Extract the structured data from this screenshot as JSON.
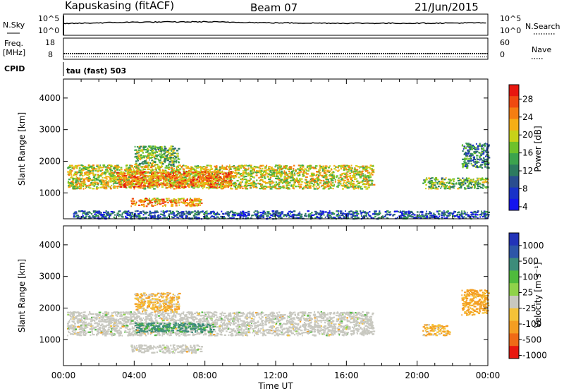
{
  "header": {
    "station": "Kapuskasing (fitACF)",
    "beam": "Beam 07",
    "date": "21/Jun/2015"
  },
  "params": {
    "nsky_label": "N.Sky",
    "nsky_ticks": [
      "10^5",
      "10^0"
    ],
    "nsearch_label": "N.Search",
    "nsearch_ticks": [
      "10^5",
      "10^0"
    ],
    "freq_label": "Freq.",
    "freq_unit": "[MHz]",
    "freq_ticks": [
      "18",
      "8"
    ],
    "nave_label": "Nave",
    "nave_ticks": [
      "60",
      "0"
    ],
    "cpid_label": "CPID",
    "cpid_value": "tau (fast) 503"
  },
  "axes": {
    "ylabel": "Slant Range [km]",
    "xlabel": "Time UT",
    "x_ticks": [
      "00:00",
      "04:00",
      "08:00",
      "12:00",
      "16:00",
      "20:00",
      "00:00"
    ],
    "y_ticks": [
      "4000",
      "3000",
      "2000",
      "1000"
    ],
    "ylim": [
      180,
      4600
    ],
    "xlim_hours": [
      0,
      24
    ]
  },
  "colorbars": {
    "power": {
      "label": "Power [dB]",
      "ticks": [
        "28",
        "24",
        "20",
        "16",
        "12",
        "8",
        "4"
      ],
      "colors": [
        "#e8170f",
        "#f04a10",
        "#f57e12",
        "#f6ae16",
        "#c7d219",
        "#6dc12b",
        "#3ca34d",
        "#2d7a5f",
        "#2a4d8f",
        "#1932c8",
        "#1414ee"
      ]
    },
    "velocity": {
      "label": "Velocity [m s⁻¹]",
      "ticks": [
        "1000",
        "500",
        "100",
        "25",
        "-25",
        "-100",
        "-500",
        "-1000"
      ],
      "colors": [
        "#2233b8",
        "#2d56a8",
        "#3d8c7a",
        "#4fba3c",
        "#8fd24a",
        "#c8c8c0",
        "#f4c238",
        "#f49e22",
        "#ef6a16",
        "#e8170f"
      ]
    }
  },
  "chart_data": [
    {
      "type": "line",
      "title": "N.Sky / N.Search",
      "x": [
        0,
        4,
        8,
        12,
        16,
        20,
        24
      ],
      "series": [
        {
          "name": "N.Sky",
          "values": [
            2.8,
            3.2,
            3.3,
            3.0,
            2.9,
            2.9,
            3.0
          ]
        },
        {
          "name": "N.Search",
          "values": [
            0.4,
            0.4,
            0.4,
            0.4,
            0.4,
            0.4,
            0.4
          ]
        }
      ]
    },
    {
      "type": "line",
      "title": "Freq. [MHz] / Nave",
      "x": [
        0,
        4,
        8,
        12,
        16,
        20,
        24
      ],
      "series": [
        {
          "name": "Freq.",
          "values": [
            10.2,
            10.2,
            10.2,
            10.2,
            10.2,
            10.2,
            10.2
          ]
        },
        {
          "name": "Nave",
          "values": [
            3,
            3,
            3,
            3,
            3,
            3,
            3
          ]
        }
      ]
    },
    {
      "type": "heatmap",
      "title": "Power [dB]",
      "xlabel": "Time UT",
      "ylabel": "Slant Range [km]",
      "ylim": [
        180,
        4600
      ],
      "regions": [
        {
          "t": [
            0.2,
            17.5
          ],
          "r": [
            1150,
            1900
          ],
          "value": 18
        },
        {
          "t": [
            3.0,
            9.5
          ],
          "r": [
            1200,
            1700
          ],
          "value": 24
        },
        {
          "t": [
            4.0,
            6.5
          ],
          "r": [
            1900,
            2500
          ],
          "value": 14
        },
        {
          "t": [
            3.8,
            7.8
          ],
          "r": [
            600,
            850
          ],
          "value": 22
        },
        {
          "t": [
            0.5,
            24.0
          ],
          "r": [
            200,
            450
          ],
          "value": 6
        },
        {
          "t": [
            20.3,
            24.0
          ],
          "r": [
            1150,
            1500
          ],
          "value": 14
        },
        {
          "t": [
            22.5,
            24.0
          ],
          "r": [
            1800,
            2600
          ],
          "value": 10
        }
      ]
    },
    {
      "type": "heatmap",
      "title": "Velocity [m s⁻¹]",
      "xlabel": "Time UT",
      "ylabel": "Slant Range [km]",
      "ylim": [
        180,
        4600
      ],
      "regions": [
        {
          "t": [
            0.2,
            17.5
          ],
          "r": [
            1150,
            1900
          ],
          "value": 0
        },
        {
          "t": [
            4.0,
            8.5
          ],
          "r": [
            1250,
            1550
          ],
          "value": 200
        },
        {
          "t": [
            4.0,
            6.5
          ],
          "r": [
            1900,
            2500
          ],
          "value": -80
        },
        {
          "t": [
            3.8,
            7.8
          ],
          "r": [
            600,
            850
          ],
          "value": 0
        },
        {
          "t": [
            20.3,
            21.8
          ],
          "r": [
            1150,
            1500
          ],
          "value": -100
        },
        {
          "t": [
            22.5,
            24.0
          ],
          "r": [
            1800,
            2600
          ],
          "value": -150
        }
      ]
    }
  ]
}
